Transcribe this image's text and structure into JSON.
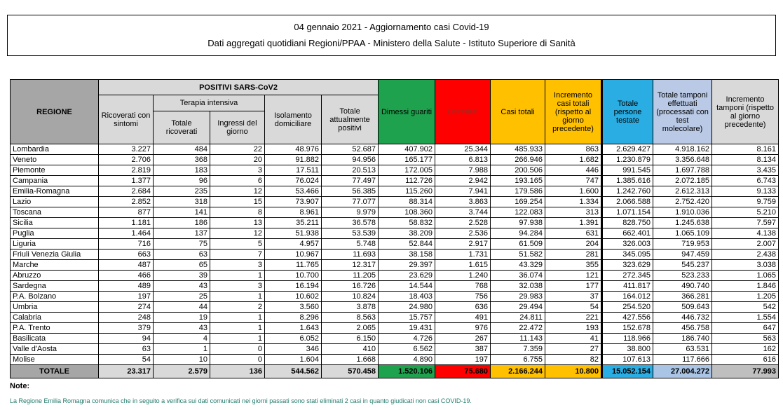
{
  "title": {
    "line1": "04 gennaio 2021 - Aggiornamento casi Covid-19",
    "line2": "Dati aggregati quotidiani Regioni/PPAA - Ministero della Salute - Istituto Superiore di Sanità"
  },
  "table": {
    "header": {
      "regione": "REGIONE",
      "positivi_group": "POSITIVI SARS-CoV2",
      "terapia_group": "Terapia intensiva",
      "ricoverati_sintomi": "Ricoverati con sintomi",
      "totale_ricoverati": "Totale ricoverati",
      "ingressi_giorno": "Ingressi del giorno",
      "isolamento": "Isolamento domiciliare",
      "attualmente_positivi": "Totale attualmente positivi",
      "dimessi": "Dimessi guariti",
      "deceduti": "Deceduti",
      "casi_totali": "Casi totali",
      "incremento_casi": "Incremento casi totali (rispetto al giorno precedente)",
      "persone_testate": "Totale persone testate",
      "tamponi": "Totale tamponi effettuati (processati con test molecolare)",
      "incremento_tamponi": "Incremento tamponi (rispetto al giorno precedente)"
    },
    "rows": [
      {
        "region": "Lombardia",
        "values": [
          "3.227",
          "484",
          "22",
          "48.976",
          "52.687",
          "407.902",
          "25.344",
          "485.933",
          "863",
          "2.629.427",
          "4.918.162",
          "8.161"
        ]
      },
      {
        "region": "Veneto",
        "values": [
          "2.706",
          "368",
          "20",
          "91.882",
          "94.956",
          "165.177",
          "6.813",
          "266.946",
          "1.682",
          "1.230.879",
          "3.356.648",
          "8.134"
        ]
      },
      {
        "region": "Piemonte",
        "values": [
          "2.819",
          "183",
          "3",
          "17.511",
          "20.513",
          "172.005",
          "7.988",
          "200.506",
          "446",
          "991.545",
          "1.697.788",
          "3.435"
        ]
      },
      {
        "region": "Campania",
        "values": [
          "1.377",
          "96",
          "6",
          "76.024",
          "77.497",
          "112.726",
          "2.942",
          "193.165",
          "747",
          "1.385.616",
          "2.072.185",
          "6.743"
        ]
      },
      {
        "region": "Emilia-Romagna",
        "values": [
          "2.684",
          "235",
          "12",
          "53.466",
          "56.385",
          "115.260",
          "7.941",
          "179.586",
          "1.600",
          "1.242.760",
          "2.612.313",
          "9.133"
        ]
      },
      {
        "region": "Lazio",
        "values": [
          "2.852",
          "318",
          "15",
          "73.907",
          "77.077",
          "88.314",
          "3.863",
          "169.254",
          "1.334",
          "2.066.588",
          "2.752.420",
          "9.759"
        ]
      },
      {
        "region": "Toscana",
        "values": [
          "877",
          "141",
          "8",
          "8.961",
          "9.979",
          "108.360",
          "3.744",
          "122.083",
          "313",
          "1.071.154",
          "1.910.036",
          "5.210"
        ]
      },
      {
        "region": "Sicilia",
        "values": [
          "1.181",
          "186",
          "13",
          "35.211",
          "36.578",
          "58.832",
          "2.528",
          "97.938",
          "1.391",
          "828.750",
          "1.245.638",
          "7.597"
        ]
      },
      {
        "region": "Puglia",
        "values": [
          "1.464",
          "137",
          "12",
          "51.938",
          "53.539",
          "38.209",
          "2.536",
          "94.284",
          "631",
          "662.401",
          "1.065.109",
          "4.138"
        ]
      },
      {
        "region": "Liguria",
        "values": [
          "716",
          "75",
          "5",
          "4.957",
          "5.748",
          "52.844",
          "2.917",
          "61.509",
          "204",
          "326.003",
          "719.953",
          "2.007"
        ]
      },
      {
        "region": "Friuli Venezia Giulia",
        "values": [
          "663",
          "63",
          "7",
          "10.967",
          "11.693",
          "38.158",
          "1.731",
          "51.582",
          "281",
          "345.095",
          "947.459",
          "2.438"
        ]
      },
      {
        "region": "Marche",
        "values": [
          "487",
          "65",
          "3",
          "11.765",
          "12.317",
          "29.397",
          "1.615",
          "43.329",
          "355",
          "323.629",
          "545.237",
          "3.038"
        ]
      },
      {
        "region": "Abruzzo",
        "values": [
          "466",
          "39",
          "1",
          "10.700",
          "11.205",
          "23.629",
          "1.240",
          "36.074",
          "121",
          "272.345",
          "523.233",
          "1.065"
        ]
      },
      {
        "region": "Sardegna",
        "values": [
          "489",
          "43",
          "3",
          "16.194",
          "16.726",
          "14.544",
          "768",
          "32.038",
          "177",
          "411.817",
          "490.740",
          "1.846"
        ]
      },
      {
        "region": "P.A. Bolzano",
        "values": [
          "197",
          "25",
          "1",
          "10.602",
          "10.824",
          "18.403",
          "756",
          "29.983",
          "37",
          "164.012",
          "366.281",
          "1.205"
        ]
      },
      {
        "region": "Umbria",
        "values": [
          "274",
          "44",
          "2",
          "3.560",
          "3.878",
          "24.980",
          "636",
          "29.494",
          "54",
          "254.520",
          "509.643",
          "542"
        ]
      },
      {
        "region": "Calabria",
        "values": [
          "248",
          "19",
          "1",
          "8.296",
          "8.563",
          "15.757",
          "491",
          "24.811",
          "221",
          "427.556",
          "446.732",
          "1.554"
        ]
      },
      {
        "region": "P.A. Trento",
        "values": [
          "379",
          "43",
          "1",
          "1.643",
          "2.065",
          "19.431",
          "976",
          "22.472",
          "193",
          "152.678",
          "456.758",
          "647"
        ]
      },
      {
        "region": "Basilicata",
        "values": [
          "94",
          "4",
          "1",
          "6.052",
          "6.150",
          "4.726",
          "267",
          "11.143",
          "41",
          "118.966",
          "186.740",
          "563"
        ]
      },
      {
        "region": "Valle d'Aosta",
        "values": [
          "63",
          "1",
          "0",
          "346",
          "410",
          "6.562",
          "387",
          "7.359",
          "27",
          "38.800",
          "63.531",
          "162"
        ]
      },
      {
        "region": "Molise",
        "values": [
          "54",
          "10",
          "0",
          "1.604",
          "1.668",
          "4.890",
          "197",
          "6.755",
          "82",
          "107.613",
          "117.666",
          "616"
        ]
      }
    ],
    "total": {
      "label": "TOTALE",
      "values": [
        "23.317",
        "2.579",
        "136",
        "544.562",
        "570.458",
        "1.520.106",
        "75.680",
        "2.166.244",
        "10.800",
        "15.052.154",
        "27.004.272",
        "77.993"
      ]
    }
  },
  "notes": {
    "label": "Note:",
    "text": "La Regione Emilia Romagna comunica che in seguito a verifica sui dati comunicati nei giorni passati sono stati eliminati 2 casi in quanto giudicati non casi COVID-19."
  },
  "colors": {
    "header_dark_gray": "#A6A6A6",
    "header_light_gray": "#D9D9D9",
    "green_dimessi": "#1FA24E",
    "red_deceduti": "#FF0000",
    "deceduti_label_text": "#9C2A21",
    "gold_casi": "#FFC000",
    "cyan_testate": "#29ADE3",
    "periwinkle_tamponi": "#B9C9E6",
    "total_gray_last": "#BFBFBF",
    "note_text": "#20796A"
  }
}
